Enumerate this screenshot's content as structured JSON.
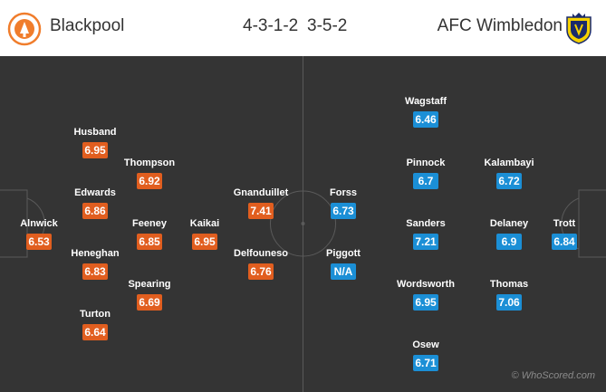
{
  "header": {
    "home_team": "Blackpool",
    "away_team": "AFC Wimbledon",
    "home_formation": "4-3-1-2",
    "away_formation": "3-5-2"
  },
  "colors": {
    "home_rating": "#e15e1f",
    "away_rating": "#1b8fd6",
    "pitch": "#343434"
  },
  "home_players": [
    {
      "name": "Alnwick",
      "rating": "6.53"
    },
    {
      "name": "Husband",
      "rating": "6.95"
    },
    {
      "name": "Edwards",
      "rating": "6.86"
    },
    {
      "name": "Heneghan",
      "rating": "6.83"
    },
    {
      "name": "Turton",
      "rating": "6.64"
    },
    {
      "name": "Thompson",
      "rating": "6.92"
    },
    {
      "name": "Feeney",
      "rating": "6.85"
    },
    {
      "name": "Spearing",
      "rating": "6.69"
    },
    {
      "name": "Kaikai",
      "rating": "6.95"
    },
    {
      "name": "Gnanduillet",
      "rating": "7.41"
    },
    {
      "name": "Delfouneso",
      "rating": "6.76"
    }
  ],
  "away_players": [
    {
      "name": "Forss",
      "rating": "6.73"
    },
    {
      "name": "Piggott",
      "rating": "N/A"
    },
    {
      "name": "Wagstaff",
      "rating": "6.46"
    },
    {
      "name": "Pinnock",
      "rating": "6.7"
    },
    {
      "name": "Sanders",
      "rating": "7.21"
    },
    {
      "name": "Wordsworth",
      "rating": "6.95"
    },
    {
      "name": "Osew",
      "rating": "6.71"
    },
    {
      "name": "Kalambayi",
      "rating": "6.72"
    },
    {
      "name": "Delaney",
      "rating": "6.9"
    },
    {
      "name": "Thomas",
      "rating": "7.06"
    },
    {
      "name": "Trott",
      "rating": "6.84"
    }
  ],
  "watermark": "© WhoScored.com"
}
